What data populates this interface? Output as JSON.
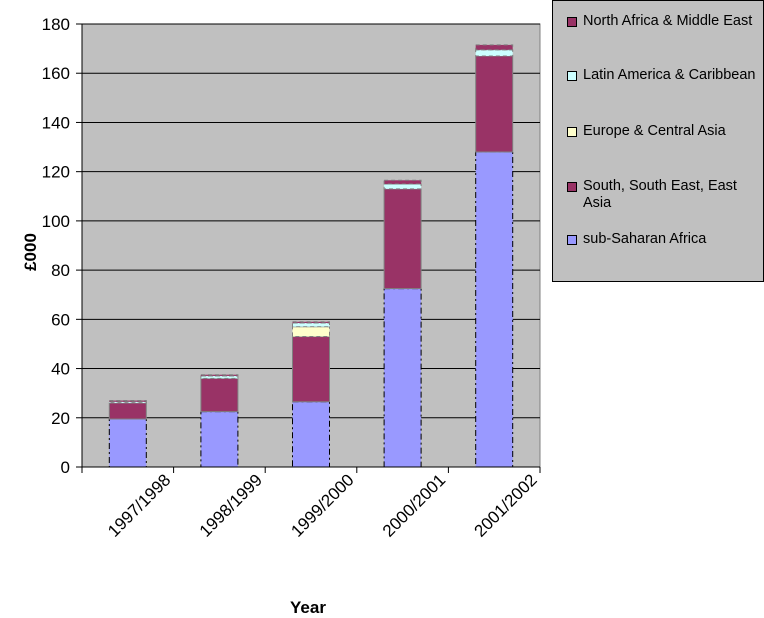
{
  "chart_data": {
    "type": "bar",
    "stacked": true,
    "categories": [
      "1997/1998",
      "1998/1999",
      "1999/2000",
      "2000/2001",
      "2001/2002"
    ],
    "series": [
      {
        "name": "sub-Saharan Africa",
        "color": "#9999ff",
        "values": [
          19.5,
          22.5,
          26.5,
          72.5,
          128
        ]
      },
      {
        "name": "South, South East, East Asia",
        "color": "#993366",
        "values": [
          6.5,
          13.5,
          26.5,
          40.5,
          39
        ]
      },
      {
        "name": "Europe & Central Asia",
        "color": "#ffffcc",
        "values": [
          0,
          0,
          4,
          0,
          0
        ]
      },
      {
        "name": "Latin America & Caribbean",
        "color": "#ccffff",
        "values": [
          0.5,
          1,
          1.5,
          2,
          2.5
        ]
      },
      {
        "name": "North Africa & Middle East",
        "color": "#993366",
        "values": [
          0.5,
          0.5,
          0.5,
          1.5,
          2
        ]
      }
    ],
    "xlabel": "Year",
    "ylabel": "£000",
    "ylim": [
      0,
      180
    ],
    "yticks": [
      0,
      20,
      40,
      60,
      80,
      100,
      120,
      140,
      160,
      180
    ],
    "plot_background": "#c0c0c0",
    "grid": "horizontal",
    "legend_position": "right",
    "legend_order": [
      "North Africa & Middle East",
      "Latin America & Caribbean",
      "Europe & Central Asia",
      "South, South East, East Asia",
      "sub-Saharan Africa"
    ]
  }
}
